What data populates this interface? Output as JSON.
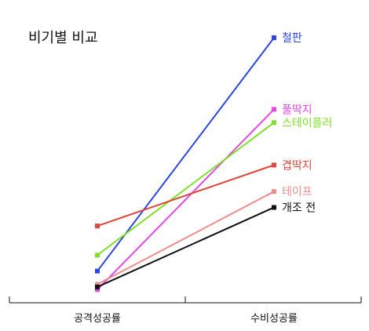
{
  "chart_data": {
    "type": "line",
    "title": "비기별 비교",
    "categories": [
      "공격성공률",
      "수비성공률"
    ],
    "xlabel": "",
    "ylabel": "",
    "grid": false,
    "legend": "inline-right",
    "ylim": [
      0,
      100
    ],
    "series": [
      {
        "name": "철판",
        "values": [
          9,
          97
        ],
        "color": "#2b45e6"
      },
      {
        "name": "풀딱지",
        "values": [
          2,
          70
        ],
        "color": "#e548e5"
      },
      {
        "name": "스테이플러",
        "values": [
          15,
          65
        ],
        "color": "#7ee02c"
      },
      {
        "name": "겹딱지",
        "values": [
          26,
          49
        ],
        "color": "#e0463a"
      },
      {
        "name": "테이프",
        "values": [
          4,
          39
        ],
        "color": "#f08c8c"
      },
      {
        "name": "개조 전",
        "values": [
          3,
          33
        ],
        "color": "#111111"
      }
    ]
  }
}
